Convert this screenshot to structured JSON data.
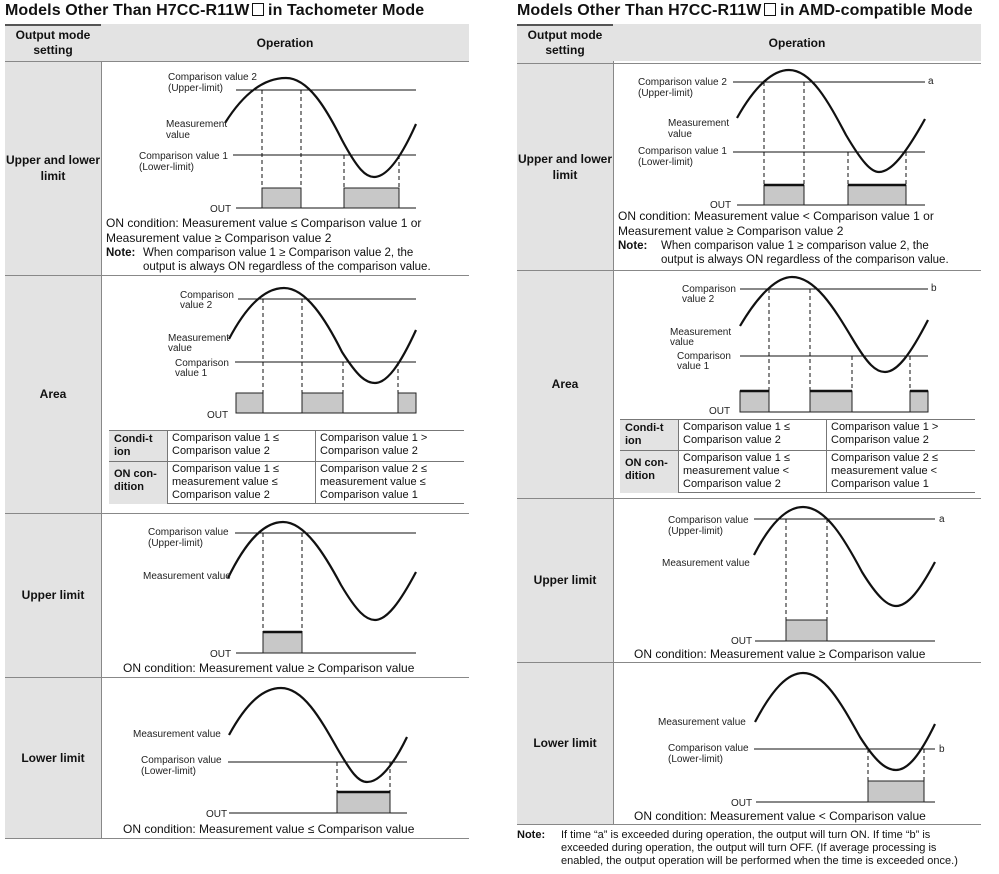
{
  "left": {
    "title": "Models Other Than H7CC-R11W",
    "title_suffix": " in Tachometer Mode",
    "header_mode": "Output mode setting",
    "header_operation": "Operation",
    "rows": {
      "ul": {
        "label": "Upper and lower limit",
        "cv2": "Comparison value 2",
        "cv2_sub": "(Upper-limit)",
        "mv": "Measurement",
        "mv2": "value",
        "cv1": "Comparison value 1",
        "cv1_sub": "(Lower-limit)",
        "out": "OUT",
        "cond1": "ON condition: Measurement value ≤ Comparison value 1 or",
        "cond2": "Measurement value ≥ Comparison value 2",
        "note_label": "Note:",
        "note1": "When comparison value 1 ≥ Comparison value 2, the",
        "note2": "output is always ON regardless of the comparison value."
      },
      "area": {
        "label": "Area",
        "cv2a": "Comparison",
        "cv2b": "value 2",
        "mva": "Measurement",
        "mvb": "value",
        "cv1a": "Comparison",
        "cv1b": "value 1",
        "out": "OUT",
        "cond_label": "Condi-tion",
        "cond_a": "Comparison value 1 ≤ Comparison value 2",
        "cond_b": "Comparison value 1 > Comparison value 2",
        "on_label": "ON con-dition",
        "on_a": "Comparison value 1 ≤ measurement value ≤ Comparison value 2",
        "on_b": "Comparison value 2 ≤ measurement value ≤ Comparison value 1"
      },
      "up": {
        "label": "Upper limit",
        "cv": "Comparison value",
        "cv_sub": "(Upper-limit)",
        "mv": "Measurement value",
        "out": "OUT",
        "cond": "ON condition: Measurement value ≥ Comparison value"
      },
      "low": {
        "label": "Lower limit",
        "mv": "Measurement value",
        "cv": "Comparison value",
        "cv_sub": "(Lower-limit)",
        "out": "OUT",
        "cond": "ON condition: Measurement value ≤ Comparison value"
      }
    }
  },
  "right": {
    "title": "Models Other Than H7CC-R11W",
    "title_suffix": " in AMD-compatible Mode",
    "header_mode": "Output mode setting",
    "header_operation": "Operation",
    "rows": {
      "ul": {
        "label": "Upper and lower limit",
        "cv2": "Comparison value 2",
        "cv2_sub": "(Upper-limit)",
        "mv": "Measurement",
        "mv2": "value",
        "cv1": "Comparison value 1",
        "cv1_sub": "(Lower-limit)",
        "out": "OUT",
        "a": "a",
        "cond1": "ON condition: Measurement value < Comparison value 1 or",
        "cond2": "Measurement value ≥ Comparison value 2",
        "note_label": "Note:",
        "note1": "When comparison value 1 ≥ comparison value 2, the",
        "note2": "output is always ON regardless of the comparison value."
      },
      "area": {
        "label": "Area",
        "cv2a": "Comparison",
        "cv2b": "value 2",
        "mva": "Measurement",
        "mvb": "value",
        "cv1a": "Comparison",
        "cv1b": "value 1",
        "out": "OUT",
        "b": "b",
        "cond_label": "Condi-tion",
        "cond_a": "Comparison value 1 ≤ Comparison value 2",
        "cond_b": "Comparison value 1 > Comparison value 2",
        "on_label": "ON con-dition",
        "on_a": "Comparison value 1 ≤ measurement value < Comparison value 2",
        "on_b": "Comparison value 2 ≤ measurement value < Comparison value 1"
      },
      "up": {
        "label": "Upper limit",
        "cv": "Comparison value",
        "cv_sub": "(Upper-limit)",
        "mv": "Measurement value",
        "out": "OUT",
        "a": "a",
        "cond": "ON condition: Measurement value ≥ Comparison value"
      },
      "low": {
        "label": "Lower limit",
        "mv": "Measurement value",
        "cv": "Comparison value",
        "cv_sub": "(Lower-limit)",
        "out": "OUT",
        "b": "b",
        "cond": "ON condition: Measurement value < Comparison value"
      }
    },
    "bottom_note_label": "Note:",
    "bottom_note1": "If time “a” is exceeded during operation, the output will turn ON. If time “b” is",
    "bottom_note2": "exceeded during operation, the output will turn OFF. (If average processing is",
    "bottom_note3": "enabled, the output operation will be performed when the time is exceeded once.)"
  }
}
